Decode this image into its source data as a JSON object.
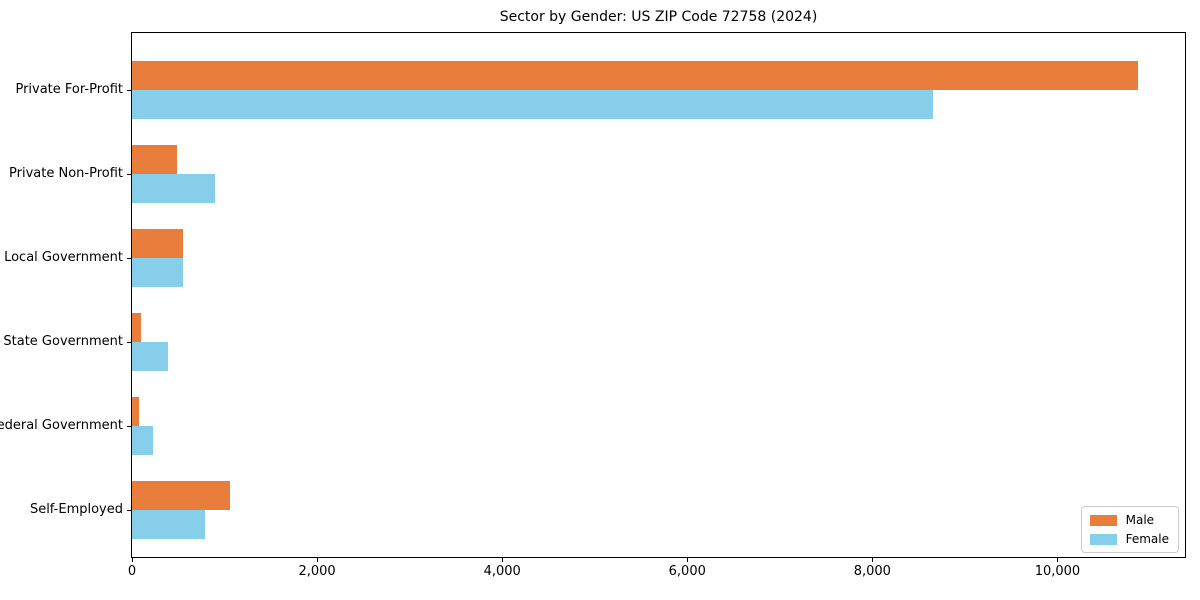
{
  "chart_data": {
    "type": "bar",
    "orientation": "horizontal",
    "title": "Sector by Gender: US ZIP Code 72758 (2024)",
    "xlabel": "",
    "ylabel": "",
    "categories": [
      "Private For-Profit",
      "Private Non-Profit",
      "Local Government",
      "State Government",
      "Federal Government",
      "Self-Employed"
    ],
    "series": [
      {
        "name": "Male",
        "color": "#e87d3c",
        "values": [
          10870,
          485,
          550,
          95,
          80,
          1060
        ]
      },
      {
        "name": "Female",
        "color": "#87ceeb",
        "values": [
          8650,
          900,
          555,
          390,
          230,
          790
        ]
      }
    ],
    "xlim": [
      0,
      11400
    ],
    "xticks": [
      0,
      2000,
      4000,
      6000,
      8000,
      10000
    ],
    "xtick_labels": [
      "0",
      "2,000",
      "4,000",
      "6,000",
      "8,000",
      "10,000"
    ],
    "grid": false,
    "legend_position": "lower right"
  },
  "legend": {
    "items": [
      {
        "label": "Male",
        "color": "#e87d3c"
      },
      {
        "label": "Female",
        "color": "#87ceeb"
      }
    ]
  }
}
